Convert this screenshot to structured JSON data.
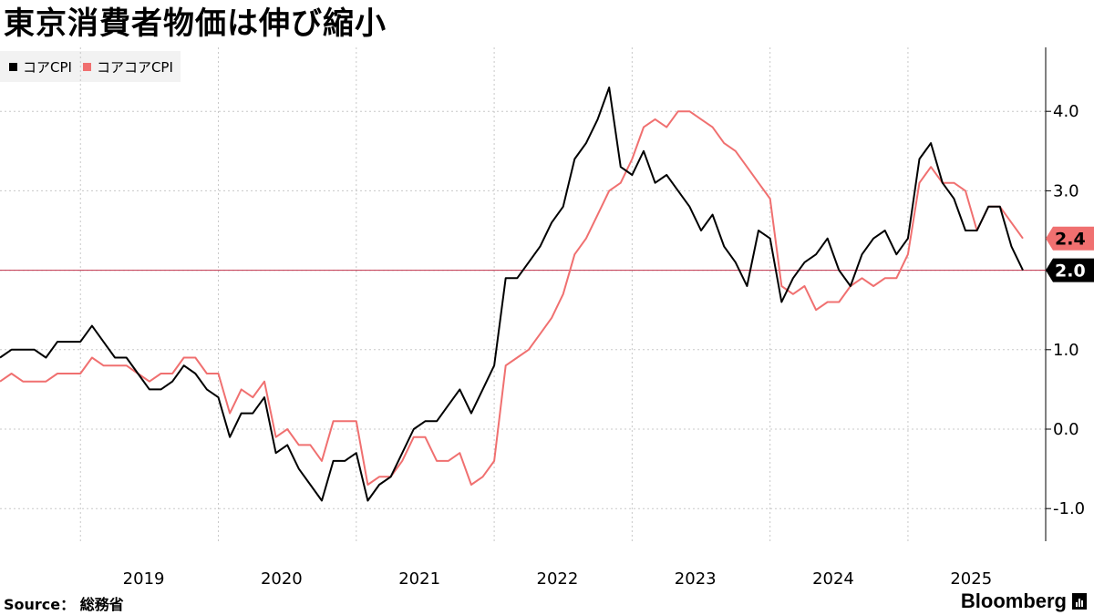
{
  "title": "東京消費者物価は伸び縮小",
  "legend": [
    {
      "label": "コアCPI",
      "color": "#000000"
    },
    {
      "label": "コアコアCPI",
      "color": "#f07070"
    }
  ],
  "source": "Source： 総務省",
  "brand": "Bloomberg",
  "chart_data": {
    "type": "line",
    "title": "東京消費者物価は伸び縮小",
    "xlabel": "",
    "ylabel": "",
    "ylim": [
      -1.4,
      4.8
    ],
    "y_ticks": [
      -1.0,
      0.0,
      1.0,
      2.0,
      3.0,
      4.0
    ],
    "y_tick_labels": [
      "-1.0",
      "0.0",
      "1.0",
      "",
      "3.0",
      "4.0"
    ],
    "x_tick_labels": [
      "2019",
      "2020",
      "2021",
      "2022",
      "2023",
      "2024",
      "2025"
    ],
    "x_start": "2018-06",
    "x_end": "2025-09",
    "grid": true,
    "legend_position": "top-left",
    "reference_line": 2.0,
    "end_labels": [
      {
        "series": "コアコアCPI",
        "value": "2.4"
      },
      {
        "series": "コアCPI",
        "value": "2.0"
      }
    ],
    "series": [
      {
        "name": "コアCPI",
        "color": "#000000",
        "values": [
          0.9,
          1.0,
          1.0,
          1.0,
          0.9,
          1.1,
          1.1,
          1.1,
          1.3,
          1.1,
          0.9,
          0.9,
          0.7,
          0.5,
          0.5,
          0.6,
          0.8,
          0.7,
          0.5,
          0.4,
          -0.1,
          0.2,
          0.2,
          0.4,
          -0.3,
          -0.2,
          -0.5,
          -0.7,
          -0.9,
          -0.4,
          -0.4,
          -0.3,
          -0.9,
          -0.7,
          -0.6,
          -0.3,
          0.0,
          0.1,
          0.1,
          0.3,
          0.5,
          0.2,
          0.5,
          0.8,
          1.9,
          1.9,
          2.1,
          2.3,
          2.6,
          2.8,
          3.4,
          3.6,
          3.9,
          4.3,
          3.3,
          3.2,
          3.5,
          3.1,
          3.2,
          3.0,
          2.8,
          2.5,
          2.7,
          2.3,
          2.1,
          1.8,
          2.5,
          2.4,
          1.6,
          1.9,
          2.1,
          2.2,
          2.4,
          2.0,
          1.8,
          2.2,
          2.4,
          2.5,
          2.2,
          2.4,
          3.4,
          3.6,
          3.1,
          2.9,
          2.5,
          2.5,
          2.8,
          2.8,
          2.3,
          2.0
        ]
      },
      {
        "name": "コアコアCPI",
        "color": "#f07070",
        "values": [
          0.6,
          0.7,
          0.6,
          0.6,
          0.6,
          0.7,
          0.7,
          0.7,
          0.9,
          0.8,
          0.8,
          0.8,
          0.7,
          0.6,
          0.7,
          0.7,
          0.9,
          0.9,
          0.7,
          0.7,
          0.2,
          0.5,
          0.4,
          0.6,
          -0.1,
          0.0,
          -0.2,
          -0.2,
          -0.4,
          0.1,
          0.1,
          0.1,
          -0.7,
          -0.6,
          -0.6,
          -0.4,
          -0.1,
          -0.1,
          -0.4,
          -0.4,
          -0.3,
          -0.7,
          -0.6,
          -0.4,
          0.8,
          0.9,
          1.0,
          1.2,
          1.4,
          1.7,
          2.2,
          2.4,
          2.7,
          3.0,
          3.1,
          3.4,
          3.8,
          3.9,
          3.8,
          4.0,
          4.0,
          3.9,
          3.8,
          3.6,
          3.5,
          3.3,
          3.1,
          2.9,
          1.8,
          1.7,
          1.8,
          1.5,
          1.6,
          1.6,
          1.8,
          1.9,
          1.8,
          1.9,
          1.9,
          2.2,
          3.1,
          3.3,
          3.1,
          3.1,
          3.0,
          2.5,
          2.8,
          2.8,
          2.6,
          2.4
        ]
      }
    ]
  }
}
